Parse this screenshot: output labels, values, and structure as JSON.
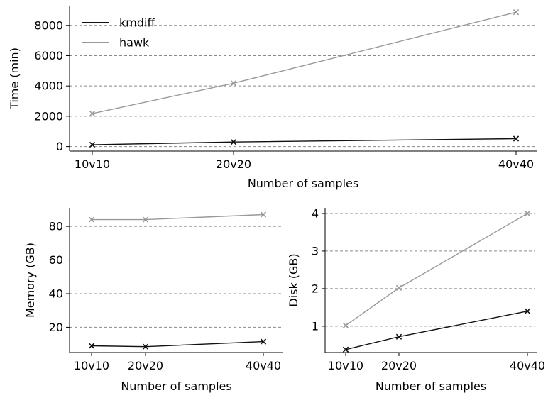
{
  "colors": {
    "kmdiff": "#111111",
    "hawk": "#999999",
    "grid": "#8a8a8a",
    "axis": "#000000"
  },
  "legend": {
    "placement": "upper-left",
    "entries": [
      "kmdiff",
      "hawk"
    ]
  },
  "chart_data": [
    {
      "type": "line",
      "marker": "x",
      "grid": "y-dashed",
      "xlabel": "Number of samples",
      "ylabel": "Time (min)",
      "x": [
        10,
        20,
        40
      ],
      "x_tick_labels": [
        "10v10",
        "20v20",
        "40v40"
      ],
      "xlim": [
        8,
        41
      ],
      "ylim": [
        -300,
        9300
      ],
      "y_ticks": [
        0,
        2000,
        4000,
        6000,
        8000
      ],
      "y_tick_labels": [
        "0",
        "2000",
        "4000",
        "6000",
        "8000"
      ],
      "series": [
        {
          "name": "kmdiff",
          "values": [
            120,
            300,
            520
          ]
        },
        {
          "name": "hawk",
          "values": [
            2180,
            4180,
            8870
          ]
        }
      ]
    },
    {
      "type": "line",
      "marker": "x",
      "grid": "y-dashed",
      "xlabel": "Number of samples",
      "ylabel": "Memory (GB)",
      "x": [
        10,
        20,
        40
      ],
      "x_tick_labels": [
        "10v10",
        "20v20",
        "40v40"
      ],
      "xlim": [
        8,
        41
      ],
      "ylim": [
        5,
        91
      ],
      "y_ticks": [
        20,
        40,
        60,
        80
      ],
      "y_tick_labels": [
        "20",
        "40",
        "60",
        "80"
      ],
      "series": [
        {
          "name": "kmdiff",
          "values": [
            9,
            8.5,
            11.5
          ]
        },
        {
          "name": "hawk",
          "values": [
            84,
            84,
            87
          ]
        }
      ]
    },
    {
      "type": "line",
      "marker": "x",
      "grid": "y-dashed",
      "xlabel": "Number of samples",
      "ylabel": "Disk (GB)",
      "x": [
        10,
        20,
        40
      ],
      "x_tick_labels": [
        "10v10",
        "20v20",
        "40v40"
      ],
      "xlim": [
        8,
        41
      ],
      "ylim": [
        0.3,
        4.15
      ],
      "y_ticks": [
        1,
        2,
        3,
        4
      ],
      "y_tick_labels": [
        "1",
        "2",
        "3",
        "4"
      ],
      "series": [
        {
          "name": "kmdiff",
          "values": [
            0.38,
            0.72,
            1.4
          ]
        },
        {
          "name": "hawk",
          "values": [
            1.02,
            2.02,
            4.0
          ]
        }
      ]
    }
  ]
}
